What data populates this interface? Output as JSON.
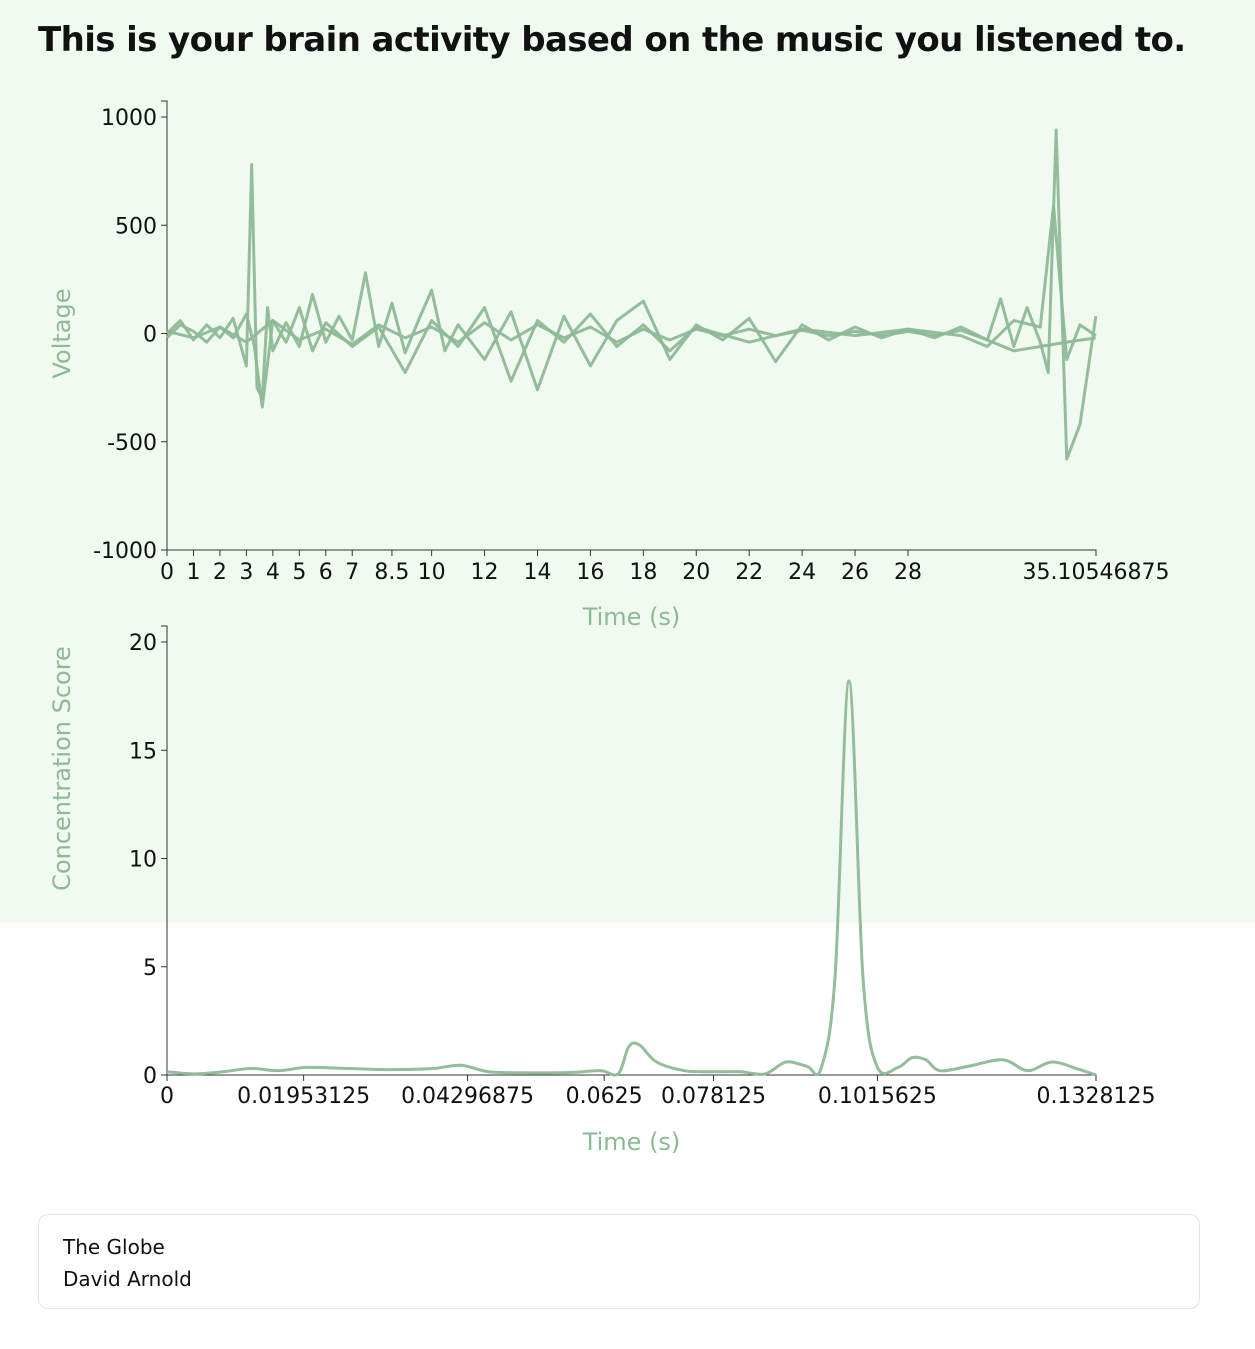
{
  "page": {
    "title": "This is your brain activity based on the music you listened to.",
    "accent_color": "#8db996",
    "band_color": "#f1faf1"
  },
  "track": {
    "title": "The Globe",
    "artist": "David Arnold"
  },
  "chart_data": [
    {
      "type": "line",
      "title": "",
      "xlabel": "Time (s)",
      "ylabel": "Voltage",
      "ylim": [
        -1000,
        1000
      ],
      "xlim": [
        0,
        35.10546875
      ],
      "yticks": [
        1000,
        500,
        0,
        -500,
        -1000
      ],
      "xticks": [
        {
          "value": 0,
          "label": "0"
        },
        {
          "value": 1,
          "label": "1"
        },
        {
          "value": 2,
          "label": "2"
        },
        {
          "value": 3,
          "label": "3"
        },
        {
          "value": 4,
          "label": "4"
        },
        {
          "value": 5,
          "label": "5"
        },
        {
          "value": 6,
          "label": "6"
        },
        {
          "value": 7,
          "label": "7"
        },
        {
          "value": 8.5,
          "label": "8.5"
        },
        {
          "value": 10,
          "label": "10"
        },
        {
          "value": 12,
          "label": "12"
        },
        {
          "value": 14,
          "label": "14"
        },
        {
          "value": 16,
          "label": "16"
        },
        {
          "value": 18,
          "label": "18"
        },
        {
          "value": 20,
          "label": "20"
        },
        {
          "value": 22,
          "label": "22"
        },
        {
          "value": 24,
          "label": "24"
        },
        {
          "value": 26,
          "label": "26"
        },
        {
          "value": 28,
          "label": "28"
        },
        {
          "value": 35.10546875,
          "label": "35.10546875"
        }
      ],
      "grid": false,
      "color": "#8db996",
      "series": [
        {
          "x": [
            0,
            0.5,
            1,
            1.5,
            2,
            2.5,
            3,
            3.2,
            3.4,
            3.6,
            3.8,
            4,
            4.5,
            5,
            5.5,
            6,
            6.5,
            7,
            7.5,
            8,
            8.5,
            9,
            9.5,
            10,
            10.5,
            11,
            12,
            13,
            14,
            15,
            16,
            17,
            18,
            19,
            20,
            21,
            22,
            23,
            24,
            25,
            26,
            27,
            28,
            29,
            30,
            31,
            31.5,
            32,
            32.5,
            33,
            33.3,
            33.6,
            34,
            34.5,
            35.1
          ],
          "y": [
            0,
            60,
            -30,
            40,
            -20,
            70,
            -150,
            780,
            -250,
            -300,
            120,
            -80,
            50,
            -60,
            180,
            -40,
            80,
            -30,
            280,
            -60,
            140,
            -90,
            60,
            200,
            -80,
            40,
            -120,
            100,
            -260,
            80,
            -150,
            60,
            150,
            -120,
            40,
            -30,
            70,
            -130,
            40,
            -30,
            30,
            -20,
            20,
            -20,
            30,
            -30,
            160,
            -60,
            120,
            -40,
            -180,
            940,
            -580,
            -420,
            80
          ]
        },
        {
          "x": [
            0,
            0.5,
            1,
            1.5,
            2,
            2.5,
            3,
            3.3,
            3.6,
            4,
            4.5,
            5,
            5.5,
            6,
            7,
            8,
            9,
            10,
            11,
            12,
            13,
            14,
            15,
            16,
            17,
            18,
            19,
            20,
            22,
            24,
            26,
            28,
            30,
            31,
            32,
            33,
            33.5,
            34,
            34.5,
            35.1
          ],
          "y": [
            -20,
            40,
            10,
            -40,
            30,
            -20,
            90,
            -60,
            -340,
            60,
            -40,
            120,
            -80,
            50,
            -60,
            30,
            -180,
            60,
            -60,
            120,
            -220,
            60,
            -40,
            90,
            -60,
            40,
            -80,
            30,
            -40,
            20,
            -10,
            20,
            -10,
            -60,
            60,
            30,
            590,
            -120,
            40,
            -10
          ]
        },
        {
          "x": [
            0,
            1,
            2,
            3,
            4,
            5,
            6,
            7,
            8,
            9,
            10,
            11,
            12,
            13,
            14,
            15,
            16,
            17,
            18,
            19,
            20,
            21,
            22,
            23,
            24,
            25,
            26,
            27,
            28,
            29,
            30,
            31,
            32,
            33,
            34,
            35.1
          ],
          "y": [
            10,
            -20,
            30,
            -40,
            60,
            -30,
            20,
            -50,
            40,
            -20,
            30,
            -40,
            50,
            -30,
            40,
            -20,
            30,
            -40,
            20,
            -30,
            20,
            -10,
            20,
            -10,
            15,
            -10,
            10,
            -10,
            10,
            -10,
            15,
            -30,
            -80,
            -60,
            -40,
            -20
          ]
        }
      ]
    },
    {
      "type": "line",
      "title": "",
      "xlabel": "Time (s)",
      "ylabel": "Concentration Score",
      "ylim": [
        0,
        20
      ],
      "xlim": [
        0,
        0.1328125
      ],
      "yticks": [
        20,
        15,
        10,
        5,
        0
      ],
      "xticks": [
        {
          "value": 0,
          "label": "0"
        },
        {
          "value": 0.01953125,
          "label": "0.01953125"
        },
        {
          "value": 0.04296875,
          "label": "0.04296875"
        },
        {
          "value": 0.0625,
          "label": "0.0625"
        },
        {
          "value": 0.078125,
          "label": "0.078125"
        },
        {
          "value": 0.1015625,
          "label": "0.1015625"
        },
        {
          "value": 0.1328125,
          "label": "0.1328125"
        }
      ],
      "grid": false,
      "color": "#8db996",
      "series": [
        {
          "x": [
            0,
            0.004,
            0.008,
            0.012,
            0.016,
            0.02,
            0.026,
            0.032,
            0.038,
            0.042,
            0.046,
            0.052,
            0.058,
            0.062,
            0.0645,
            0.066,
            0.0675,
            0.07,
            0.074,
            0.078,
            0.082,
            0.0855,
            0.0885,
            0.0915,
            0.0935,
            0.0955,
            0.0975,
            0.0995,
            0.1015,
            0.1045,
            0.1065,
            0.1085,
            0.1105,
            0.1145,
            0.1195,
            0.123,
            0.1265,
            0.13,
            0.1328125
          ],
          "y": [
            0.15,
            0.05,
            0.15,
            0.3,
            0.2,
            0.35,
            0.3,
            0.25,
            0.3,
            0.45,
            0.15,
            0.1,
            0.12,
            0.2,
            0.05,
            1.3,
            1.4,
            0.6,
            0.2,
            0.15,
            0.15,
            0.05,
            0.6,
            0.4,
            0.3,
            4.5,
            18.2,
            4.5,
            0.4,
            0.35,
            0.8,
            0.7,
            0.2,
            0.4,
            0.7,
            0.2,
            0.6,
            0.3,
            0.0
          ]
        }
      ]
    }
  ]
}
